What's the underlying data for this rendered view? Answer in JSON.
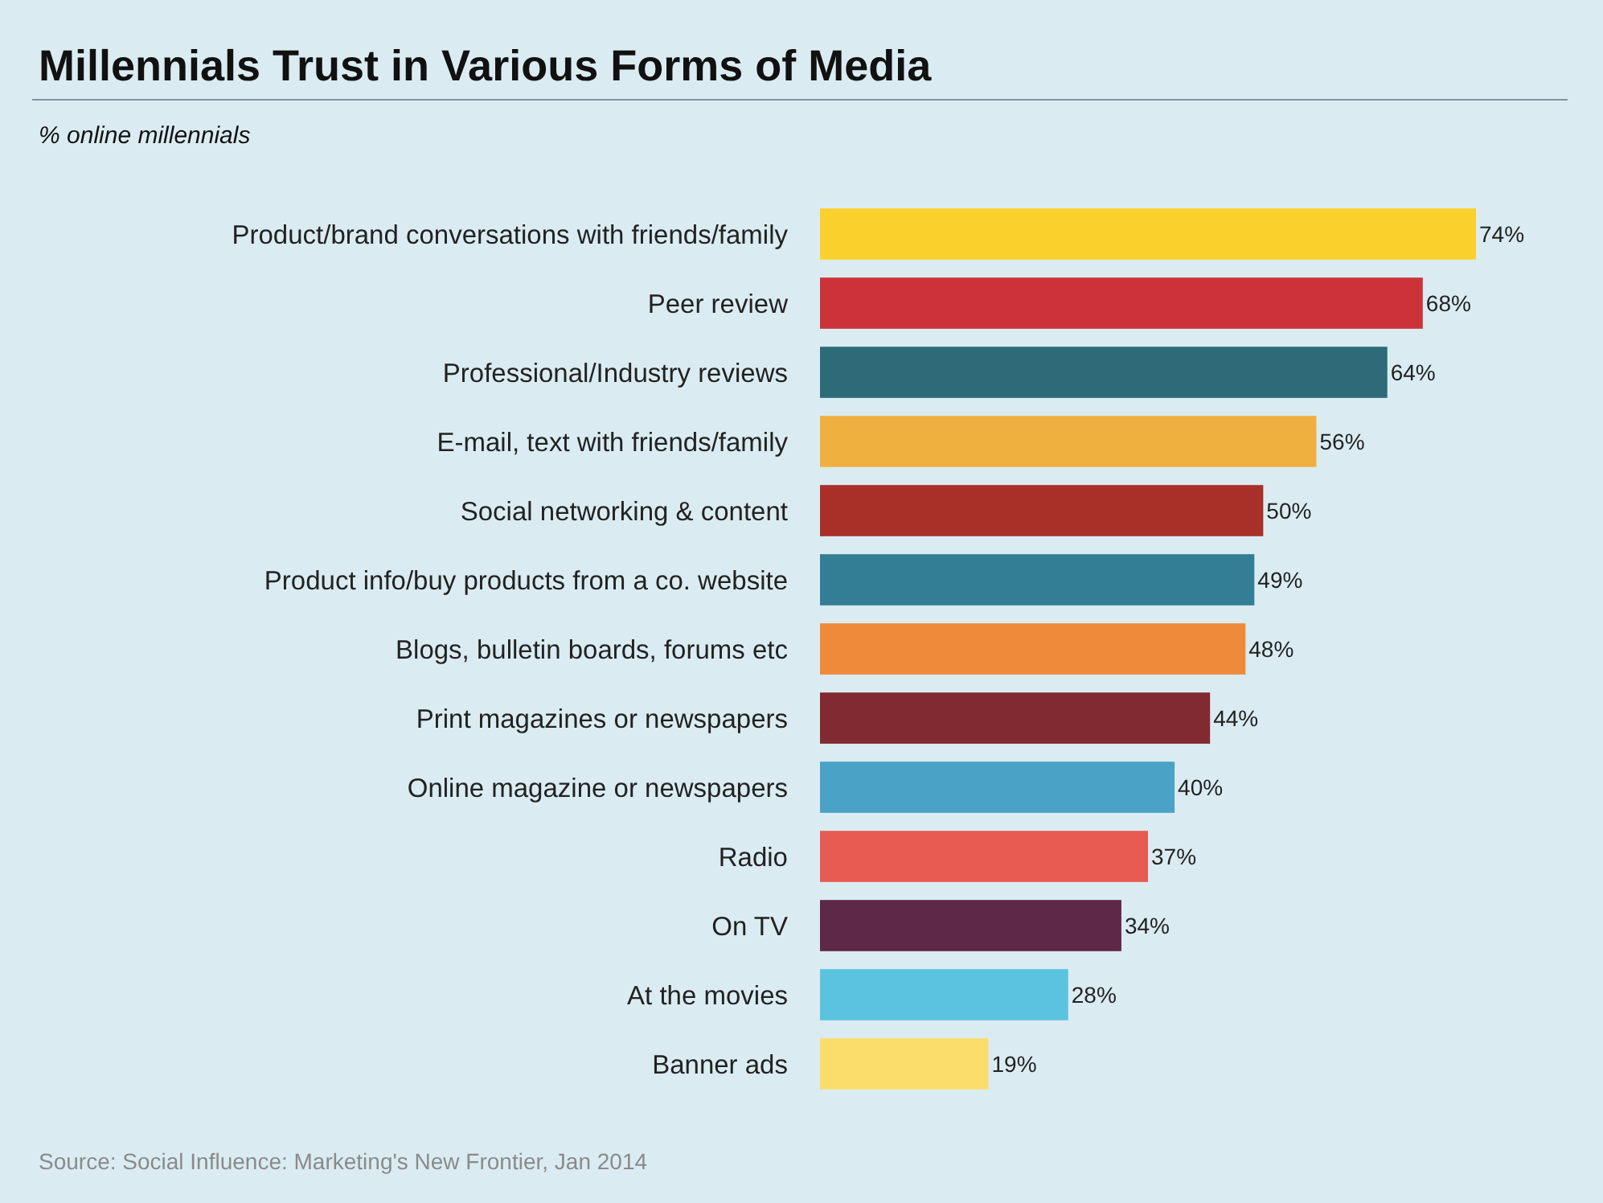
{
  "chart_data": {
    "type": "bar",
    "orientation": "horizontal",
    "title": "Millennials Trust in Various Forms of Media",
    "subtitle": "% online millennials",
    "categories": [
      "Product/brand conversations with friends/family",
      "Peer review",
      "Professional/Industry reviews",
      "E-mail, text with friends/family",
      "Social networking & content",
      "Product info/buy products from a co. website",
      "Blogs, bulletin boards, forums etc",
      "Print magazines or newspapers",
      "Online magazine or newspapers",
      "Radio",
      "On TV",
      "At the movies",
      "Banner ads"
    ],
    "values": [
      74,
      68,
      64,
      56,
      50,
      49,
      48,
      44,
      40,
      37,
      34,
      28,
      19
    ],
    "colors": [
      "#f9d02c",
      "#cc3338",
      "#2e6b78",
      "#f0b03f",
      "#a83028",
      "#347e95",
      "#ef8a3b",
      "#812a31",
      "#4aa3c6",
      "#e75b52",
      "#5e2849",
      "#5bc3e0",
      "#fbdd6b"
    ],
    "value_labels": [
      "74%",
      "68%",
      "64%",
      "56%",
      "50%",
      "49%",
      "48%",
      "44%",
      "40%",
      "37%",
      "34%",
      "28%",
      "19%"
    ],
    "annotations": [
      "Source: Social Influence: Marketing's New Frontier, Jan 2014"
    ]
  }
}
